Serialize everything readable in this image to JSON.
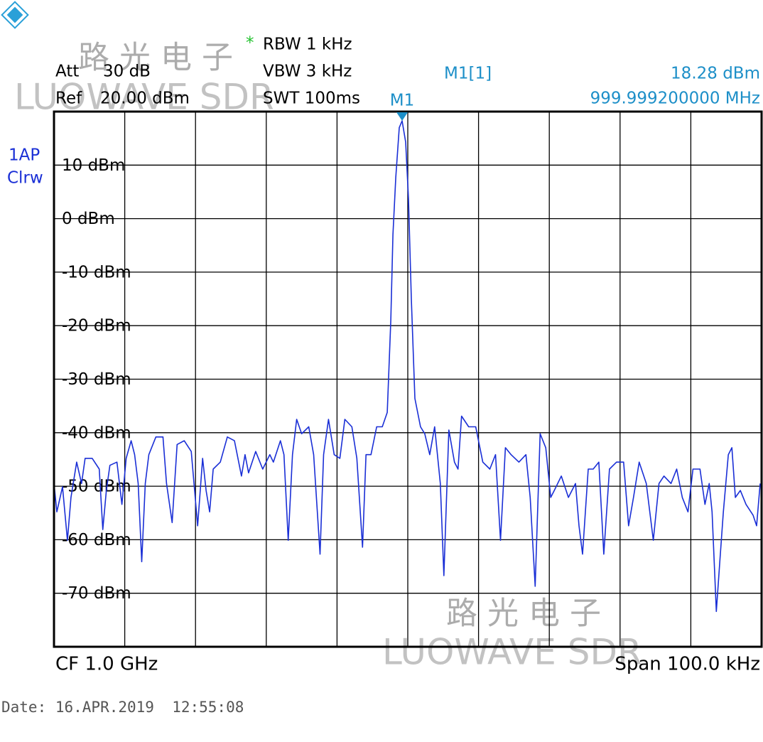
{
  "chart_data": {
    "type": "line",
    "color": "#1a2fd6",
    "settings": {
      "att_label": "Att",
      "att": "30 dB",
      "ref_label": "Ref",
      "ref": "20.00 dBm",
      "rbw_star": "*",
      "rbw": "RBW 1 kHz",
      "vbw": "VBW 3 kHz",
      "swt": "SWT 100ms"
    },
    "trace_label": [
      "1AP",
      "Clrw"
    ],
    "marker": {
      "label": "M1",
      "readout_name": "M1[1]",
      "x": -0.8,
      "y": 18.28,
      "y_label": "18.28 dBm",
      "x_label": "999.999200000 MHz"
    },
    "center": "CF 1.0 GHz",
    "span": "Span 100.0 kHz",
    "date": "Date: 16.APR.2019  12:55:08",
    "watermark": {
      "cn": "路光电子",
      "en": "LUOWAVE SDR"
    },
    "xlim": [
      -50,
      50
    ],
    "ylim": [
      -80,
      20
    ],
    "yticks": [
      {
        "value": 10,
        "label": "10 dBm"
      },
      {
        "value": 0,
        "label": "0 dBm"
      },
      {
        "value": -10,
        "label": "-10 dBm"
      },
      {
        "value": -20,
        "label": "-20 dBm"
      },
      {
        "value": -30,
        "label": "-30 dBm"
      },
      {
        "value": -40,
        "label": "-40 dBm"
      },
      {
        "value": -50,
        "label": "-50 dBm"
      },
      {
        "value": -60,
        "label": "-60 dBm"
      },
      {
        "value": -70,
        "label": "-70 dBm"
      }
    ],
    "grid": true,
    "x": [
      -50.0,
      -49.6,
      -48.8,
      -48.1,
      -47.6,
      -46.8,
      -46.1,
      -45.6,
      -44.6,
      -43.6,
      -43.1,
      -42.6,
      -42.1,
      -41.1,
      -40.4,
      -39.8,
      -39.1,
      -38.6,
      -38.1,
      -37.6,
      -37.1,
      -36.6,
      -35.6,
      -34.6,
      -34.1,
      -33.3,
      -32.6,
      -31.6,
      -30.6,
      -29.7,
      -29.0,
      -28.5,
      -28.0,
      -27.5,
      -26.5,
      -25.5,
      -24.5,
      -23.5,
      -23.0,
      -22.5,
      -21.5,
      -20.5,
      -19.5,
      -19.0,
      -18.0,
      -17.5,
      -16.9,
      -16.3,
      -15.7,
      -15.0,
      -14.0,
      -13.3,
      -12.4,
      -11.9,
      -11.2,
      -10.4,
      -9.6,
      -8.9,
      -7.9,
      -7.2,
      -6.4,
      -5.9,
      -5.2,
      -4.4,
      -3.6,
      -2.9,
      -2.4,
      -2.1,
      -1.7,
      -1.2,
      -0.8,
      -0.3,
      0.1,
      0.5,
      1.0,
      1.8,
      2.4,
      3.1,
      3.8,
      4.6,
      5.1,
      5.8,
      6.6,
      7.1,
      7.6,
      8.6,
      9.6,
      10.6,
      11.6,
      12.4,
      13.1,
      13.8,
      14.6,
      15.7,
      16.7,
      17.3,
      18.0,
      18.7,
      19.5,
      20.2,
      20.7,
      21.7,
      22.7,
      23.7,
      24.2,
      24.7,
      25.5,
      26.2,
      27.0,
      27.7,
      28.5,
      29.5,
      30.5,
      31.2,
      31.9,
      32.7,
      33.7,
      34.7,
      35.5,
      36.2,
      37.2,
      38.0,
      38.8,
      39.6,
      40.3,
      41.3,
      42.0,
      42.6,
      43.0,
      43.6,
      44.1,
      44.6,
      45.3,
      45.8,
      46.3,
      47.0,
      47.8,
      48.8,
      49.3,
      49.8
    ],
    "values": [
      -49.5,
      -54.8,
      -50.1,
      -60.1,
      -52.1,
      -45.5,
      -49.5,
      -44.8,
      -44.8,
      -46.8,
      -58.1,
      -50.8,
      -46.1,
      -45.5,
      -53.4,
      -44.8,
      -41.5,
      -44.1,
      -49.5,
      -64.1,
      -49.5,
      -44.1,
      -40.8,
      -40.8,
      -49.5,
      -56.8,
      -42.2,
      -41.5,
      -43.5,
      -57.4,
      -44.8,
      -50.8,
      -54.8,
      -46.8,
      -45.5,
      -40.8,
      -41.5,
      -48.1,
      -44.1,
      -47.5,
      -43.5,
      -46.8,
      -44.1,
      -45.5,
      -41.5,
      -44.1,
      -60.1,
      -44.1,
      -37.5,
      -40.2,
      -38.9,
      -44.1,
      -62.7,
      -44.1,
      -37.5,
      -44.1,
      -44.8,
      -37.5,
      -38.9,
      -44.8,
      -61.4,
      -44.1,
      -44.1,
      -38.9,
      -38.9,
      -36.2,
      -19.0,
      -3.0,
      7.7,
      17.0,
      18.28,
      14.3,
      3.7,
      -15.0,
      -33.6,
      -38.9,
      -40.2,
      -44.1,
      -38.9,
      -49.5,
      -66.7,
      -39.5,
      -45.5,
      -46.8,
      -36.9,
      -38.9,
      -38.9,
      -45.5,
      -46.8,
      -44.1,
      -60.1,
      -42.8,
      -44.1,
      -45.5,
      -44.1,
      -52.1,
      -68.7,
      -40.2,
      -42.8,
      -52.1,
      -50.8,
      -48.1,
      -52.1,
      -49.5,
      -57.4,
      -62.7,
      -46.8,
      -46.8,
      -45.5,
      -62.7,
      -46.8,
      -45.5,
      -45.5,
      -57.4,
      -52.1,
      -45.5,
      -49.5,
      -60.1,
      -49.5,
      -48.1,
      -49.5,
      -46.8,
      -52.1,
      -54.8,
      -46.8,
      -46.8,
      -53.4,
      -49.5,
      -54.8,
      -73.4,
      -64.1,
      -54.8,
      -44.1,
      -42.8,
      -52.1,
      -50.8,
      -53.4,
      -55.4,
      -57.4,
      -49.5
    ]
  }
}
